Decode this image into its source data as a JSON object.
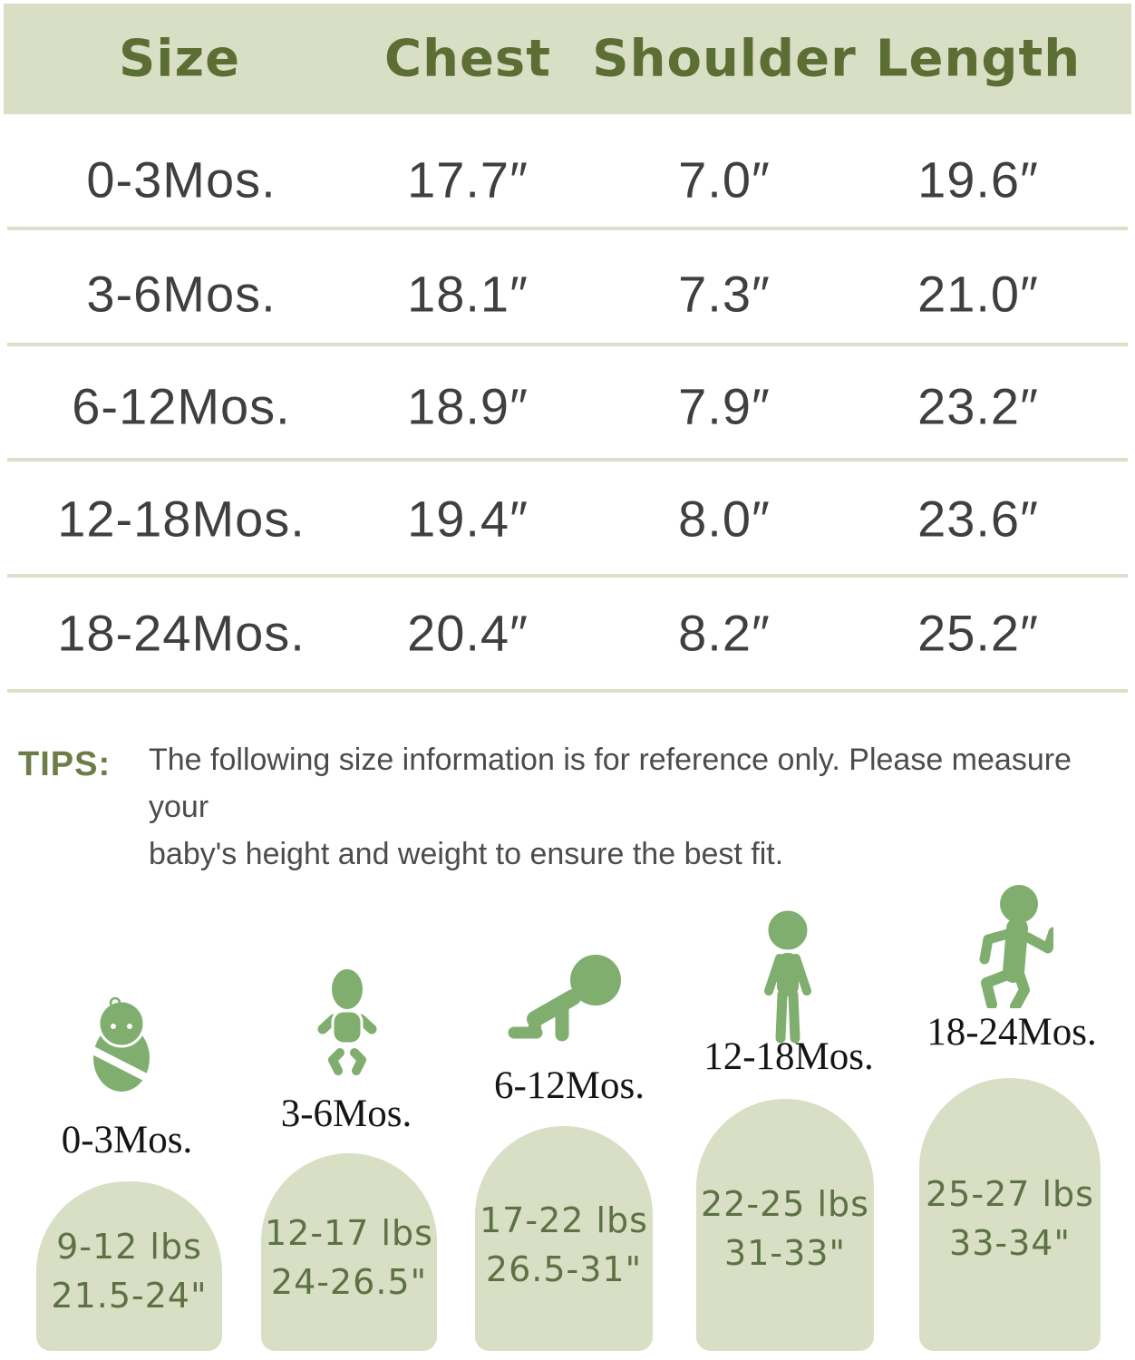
{
  "table": {
    "headers": [
      "Size",
      "Chest",
      "Shoulder",
      "Length"
    ],
    "rows": [
      {
        "size": "0-3Mos.",
        "chest": "17.7″",
        "shoulder": "7.0″",
        "length": "19.6″"
      },
      {
        "size": "3-6Mos.",
        "chest": "18.1″",
        "shoulder": "7.3″",
        "length": "21.0″"
      },
      {
        "size": "6-12Mos.",
        "chest": "18.9″",
        "shoulder": "7.9″",
        "length": "23.2″"
      },
      {
        "size": "12-18Mos.",
        "chest": "19.4″",
        "shoulder": "8.0″",
        "length": "23.6″"
      },
      {
        "size": "18-24Mos.",
        "chest": "20.4″",
        "shoulder": "8.2″",
        "length": "25.2″"
      }
    ]
  },
  "tips": {
    "label": "TIPS:",
    "line1": "The following size information is for reference only. Please measure your",
    "line2": "baby's height and weight to ensure the best fit."
  },
  "stages": [
    {
      "label": "0-3Mos.",
      "icon": "swaddled-newborn-icon",
      "weight": "9-12 lbs",
      "height": "21.5-24\""
    },
    {
      "label": "3-6Mos.",
      "icon": "sitting-baby-icon",
      "weight": "12-17 lbs",
      "height": "24-26.5\""
    },
    {
      "label": "6-12Mos.",
      "icon": "crawling-baby-icon",
      "weight": "17-22 lbs",
      "height": "26.5-31\""
    },
    {
      "label": "12-18Mos.",
      "icon": "standing-toddler-icon",
      "weight": "22-25 lbs",
      "height": "31-33\""
    },
    {
      "label": "18-24Mos.",
      "icon": "running-child-icon",
      "weight": "25-27 lbs",
      "height": "33-34\""
    }
  ],
  "colors": {
    "sage_background": "#d8dfc4",
    "header_text_green": "#5d6e34",
    "icon_green": "#7fae6f",
    "arch_text_green": "#5d7144",
    "tips_label_green": "#6e7d46",
    "table_text_gray": "#3f3f3f",
    "divider_sage": "#dbdfca"
  }
}
